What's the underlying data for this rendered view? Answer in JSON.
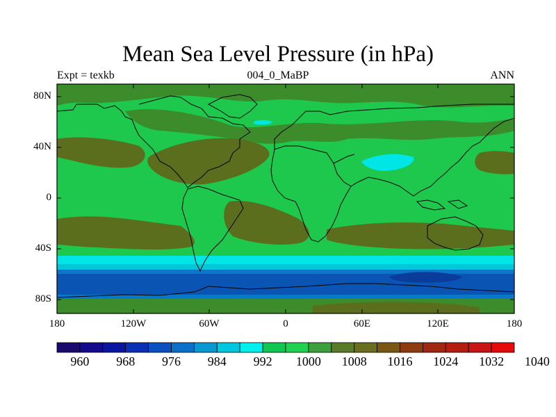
{
  "title": "Mean Sea Level Pressure (in hPa)",
  "subtitle_left": "Expt = texkb",
  "subtitle_center": "004_0_MaBP",
  "subtitle_right": "ANN",
  "lat_labels": [
    "80N",
    "40N",
    "0",
    "40S",
    "80S"
  ],
  "lon_labels": [
    "180",
    "120W",
    "60W",
    "0",
    "60E",
    "120E",
    "180"
  ],
  "colorbar": {
    "labels": [
      "960",
      "968",
      "976",
      "984",
      "992",
      "1000",
      "1008",
      "1016",
      "1024",
      "1032",
      "1040"
    ],
    "colors": [
      "#1a0a6e",
      "#140a8c",
      "#0a16a0",
      "#0a30b4",
      "#0a50c0",
      "#0a70c8",
      "#0a98d2",
      "#00c8e0",
      "#00f0f0",
      "#10c850",
      "#20d050",
      "#3ca03c",
      "#5a7c28",
      "#6a6e20",
      "#7a5814",
      "#8c3c10",
      "#a02810",
      "#b41e10",
      "#c81414",
      "#e60a0a"
    ]
  },
  "colors": {
    "land_outline": "#000000",
    "low_1008": "#1ec84c",
    "mid_1012": "#1ed26e",
    "high_1016": "#3c8c2c",
    "high_1020": "#5a6e1e",
    "cyan_1000": "#00e6e6",
    "cyan_996": "#00c8d8",
    "blue_988": "#0a78c8",
    "blue_980": "#0a55b4",
    "blue_972": "#0a3c9c"
  }
}
